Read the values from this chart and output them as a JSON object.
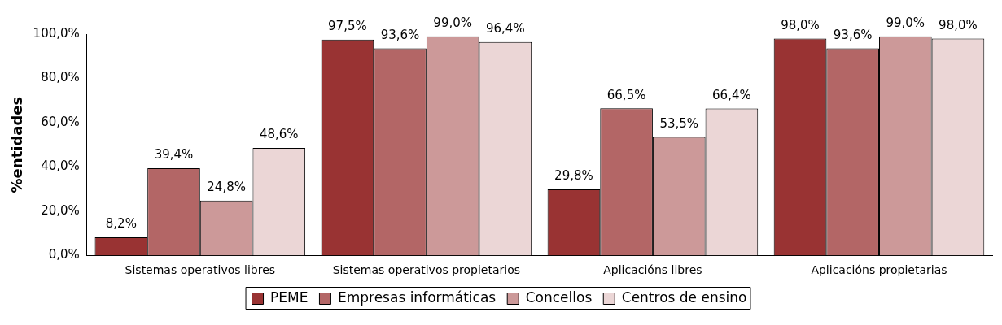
{
  "chart_data": {
    "type": "bar",
    "ylabel": "%entidades",
    "categories": [
      "Sistemas operativos libres",
      "Sistemas operativos propietarios",
      "Aplicacións libres",
      "Aplicacións propietarias"
    ],
    "series": [
      {
        "name": "PEME",
        "color": "#993333",
        "values": [
          8.2,
          97.5,
          29.8,
          98.0
        ],
        "value_labels": [
          "8,2%",
          "97,5%",
          "29,8%",
          "98,0%"
        ]
      },
      {
        "name": "Empresas informáticas",
        "color": "#b36666",
        "values": [
          39.4,
          93.6,
          66.5,
          93.6
        ],
        "value_labels": [
          "39,4%",
          "93,6%",
          "66,5%",
          "93,6%"
        ]
      },
      {
        "name": "Concellos",
        "color": "#cc9999",
        "values": [
          24.8,
          99.0,
          53.5,
          99.0
        ],
        "value_labels": [
          "24,8%",
          "99,0%",
          "53,5%",
          "99,0%"
        ]
      },
      {
        "name": "Centros de ensino",
        "color": "#ebd6d6",
        "values": [
          48.6,
          96.4,
          66.4,
          98.0
        ],
        "value_labels": [
          "48,6%",
          "96,4%",
          "66,4%",
          "98,0%"
        ]
      }
    ],
    "ylim": [
      0,
      100
    ],
    "yticks": [
      {
        "value": 0,
        "label": "0,0%"
      },
      {
        "value": 20,
        "label": "20,0%"
      },
      {
        "value": 40,
        "label": "40,0%"
      },
      {
        "value": 60,
        "label": "60,0%"
      },
      {
        "value": 80,
        "label": "80,0%"
      },
      {
        "value": 100,
        "label": "100,0%"
      }
    ],
    "grid": false,
    "legend": "bottom"
  }
}
